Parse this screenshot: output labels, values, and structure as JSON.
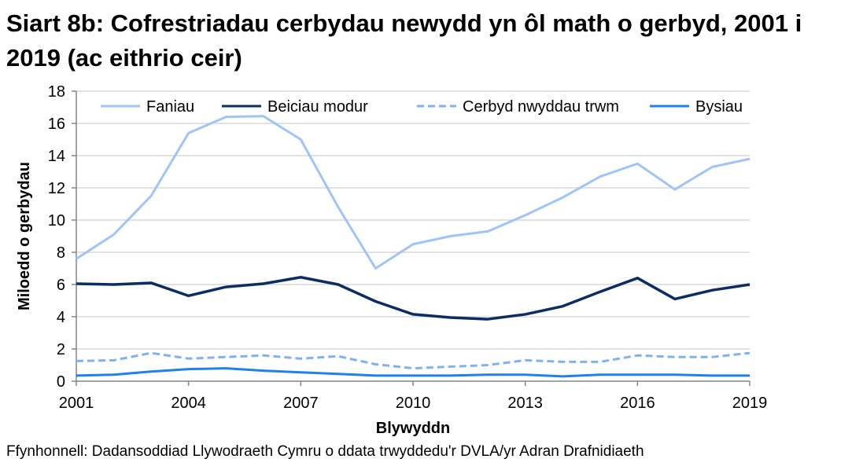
{
  "title": "Siart 8b: Cofrestriadau cerbydau newydd yn ôl math o gerbyd, 2001 i 2019 (ac eithrio ceir)",
  "source": "Ffynhonnell: Dadansoddiad Llywodraeth Cymru o ddata trwyddedu'r DVLA/yr Adran Drafnidiaeth",
  "chart_data": {
    "type": "line",
    "xlabel": "Blywyddn",
    "ylabel": "Miloedd o gerbydau",
    "xlim": [
      2001,
      2019
    ],
    "ylim": [
      0,
      18
    ],
    "x_ticks": [
      "2001",
      "2004",
      "2007",
      "2010",
      "2013",
      "2016",
      "2019"
    ],
    "y_ticks": [
      "0",
      "2",
      "4",
      "6",
      "8",
      "10",
      "12",
      "14",
      "16",
      "18"
    ],
    "grid": true,
    "legend_position": "top",
    "x": [
      2001,
      2002,
      2003,
      2004,
      2005,
      2006,
      2007,
      2008,
      2009,
      2010,
      2011,
      2012,
      2013,
      2014,
      2015,
      2016,
      2017,
      2018,
      2019
    ],
    "series": [
      {
        "name": "Faniau",
        "color": "#9fc5f8",
        "dash": false,
        "values": [
          7.6,
          9.1,
          11.5,
          15.4,
          16.4,
          16.45,
          15.0,
          10.8,
          7.0,
          8.5,
          9.0,
          9.3,
          10.3,
          11.4,
          12.7,
          13.5,
          11.9,
          13.3,
          13.8
        ]
      },
      {
        "name": "Beiciau modur",
        "color": "#0b2d63",
        "dash": false,
        "values": [
          6.05,
          6.0,
          6.1,
          5.3,
          5.85,
          6.05,
          6.45,
          6.0,
          4.95,
          4.15,
          3.95,
          3.85,
          4.15,
          4.65,
          5.55,
          6.4,
          5.1,
          5.65,
          6.0
        ]
      },
      {
        "name": "Cerbyd nwyddau trwm",
        "color": "#7fb2f5",
        "dash": true,
        "values": [
          1.25,
          1.3,
          1.75,
          1.4,
          1.5,
          1.6,
          1.4,
          1.55,
          1.05,
          0.8,
          0.9,
          1.0,
          1.3,
          1.2,
          1.2,
          1.6,
          1.5,
          1.5,
          1.75
        ]
      },
      {
        "name": "Bysiau",
        "color": "#1f80f0",
        "dash": false,
        "values": [
          0.35,
          0.4,
          0.6,
          0.75,
          0.8,
          0.65,
          0.55,
          0.45,
          0.35,
          0.35,
          0.35,
          0.4,
          0.4,
          0.3,
          0.4,
          0.4,
          0.4,
          0.35,
          0.35
        ]
      }
    ]
  }
}
